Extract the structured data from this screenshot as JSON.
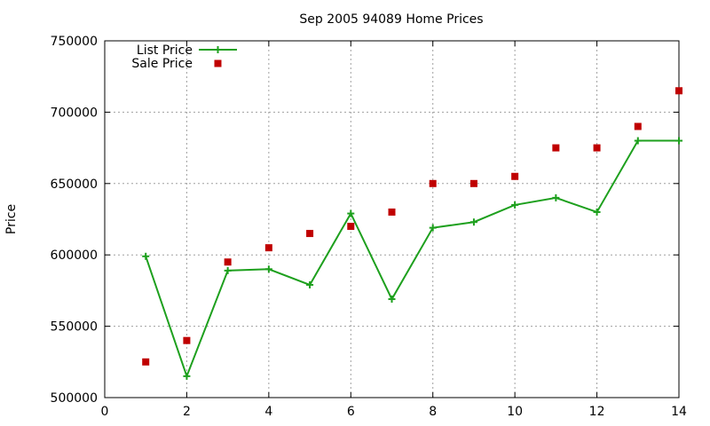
{
  "chart_data": {
    "type": "line",
    "title": "Sep 2005 94089 Home Prices",
    "xlabel": "",
    "ylabel": "Price",
    "xlim": [
      0,
      14
    ],
    "ylim": [
      500000,
      750000
    ],
    "xticks": [
      0,
      2,
      4,
      6,
      8,
      10,
      12,
      14
    ],
    "yticks": [
      500000,
      550000,
      600000,
      650000,
      700000,
      750000
    ],
    "grid": true,
    "legend_position": "top-left",
    "series": [
      {
        "name": "List Price",
        "style": "linespoints",
        "color": "#1ea01e",
        "x": [
          1,
          2,
          3,
          4,
          5,
          6,
          7,
          8,
          9,
          10,
          11,
          12,
          13,
          14
        ],
        "y": [
          599000,
          515000,
          589000,
          590000,
          579000,
          629000,
          569000,
          619000,
          623000,
          635000,
          640000,
          630000,
          680000,
          680000
        ]
      },
      {
        "name": "Sale Price",
        "style": "points",
        "color": "#c00000",
        "x": [
          1,
          2,
          3,
          4,
          5,
          6,
          7,
          8,
          9,
          10,
          11,
          12,
          13,
          14
        ],
        "y": [
          525000,
          540000,
          595000,
          605000,
          615000,
          620000,
          630000,
          650000,
          650000,
          655000,
          675000,
          675000,
          690000,
          715000
        ]
      }
    ]
  }
}
